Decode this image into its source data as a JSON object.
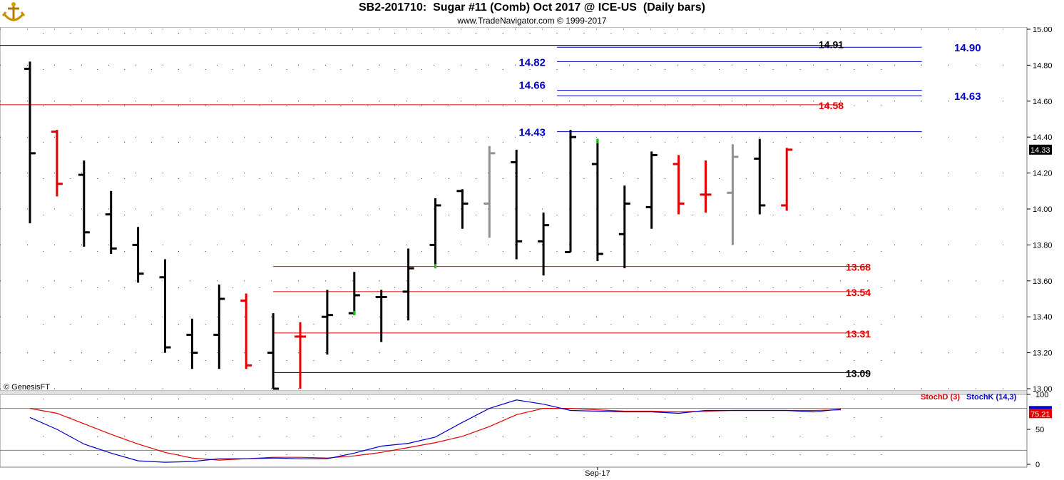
{
  "header": {
    "title": "SB2-201710:  Sugar #11 (Comb) Oct 2017 @ ICE-US  (Daily bars)",
    "subtitle": "www.TradeNavigator.com © 1999-2017",
    "watermark": "© GenesisFT"
  },
  "colors": {
    "up": "#000000",
    "down": "#e00000",
    "neutral": "#909090",
    "support": "#e00000",
    "resistance": "#0000cc",
    "stochD": "#e00000",
    "stochK": "#0000cc",
    "marker": "#00cc00"
  },
  "chart_data": [
    {
      "type": "ohlc",
      "ylim": [
        13.0,
        15.0
      ],
      "yticks": [
        "15.00",
        "14.80",
        "14.60",
        "14.40",
        "14.20",
        "14.00",
        "13.80",
        "13.60",
        "13.40",
        "13.20",
        "13.00"
      ],
      "grid": true,
      "last_price": "14.33",
      "bars": [
        {
          "o": 14.78,
          "h": 14.82,
          "l": 13.92,
          "c": 14.31,
          "color": "up"
        },
        {
          "o": 14.43,
          "h": 14.44,
          "l": 14.07,
          "c": 14.14,
          "color": "down"
        },
        {
          "o": 14.19,
          "h": 14.27,
          "l": 13.79,
          "c": 13.87,
          "color": "up"
        },
        {
          "o": 13.97,
          "h": 14.1,
          "l": 13.75,
          "c": 13.78,
          "color": "up"
        },
        {
          "o": 13.8,
          "h": 13.9,
          "l": 13.59,
          "c": 13.64,
          "color": "up"
        },
        {
          "o": 13.62,
          "h": 13.72,
          "l": 13.2,
          "c": 13.23,
          "color": "up"
        },
        {
          "o": 13.3,
          "h": 13.39,
          "l": 13.11,
          "c": 13.2,
          "color": "up"
        },
        {
          "o": 13.3,
          "h": 13.58,
          "l": 13.11,
          "c": 13.5,
          "color": "up"
        },
        {
          "o": 13.49,
          "h": 13.53,
          "l": 13.11,
          "c": 13.13,
          "color": "down"
        },
        {
          "o": 13.2,
          "h": 13.42,
          "l": 13.0,
          "c": 13.0,
          "color": "up"
        },
        {
          "o": 13.29,
          "h": 13.37,
          "l": 13.0,
          "c": 13.29,
          "color": "down"
        },
        {
          "o": 13.4,
          "h": 13.55,
          "l": 13.19,
          "c": 13.41,
          "color": "up"
        },
        {
          "o": 13.42,
          "h": 13.65,
          "l": 13.41,
          "c": 13.52,
          "color": "up",
          "mark": "low"
        },
        {
          "o": 13.51,
          "h": 13.55,
          "l": 13.26,
          "c": 13.51,
          "color": "up"
        },
        {
          "o": 13.54,
          "h": 13.78,
          "l": 13.38,
          "c": 13.67,
          "color": "up"
        },
        {
          "o": 13.8,
          "h": 14.06,
          "l": 13.67,
          "c": 14.02,
          "color": "up",
          "mark": "low"
        },
        {
          "o": 14.1,
          "h": 14.11,
          "l": 13.89,
          "c": 14.03,
          "color": "up"
        },
        {
          "o": 14.03,
          "h": 14.35,
          "l": 13.84,
          "c": 14.31,
          "color": "neutral"
        },
        {
          "o": 14.26,
          "h": 14.33,
          "l": 13.72,
          "c": 13.82,
          "color": "up"
        },
        {
          "o": 13.82,
          "h": 13.98,
          "l": 13.63,
          "c": 13.91,
          "color": "up"
        },
        {
          "o": 13.76,
          "h": 14.44,
          "l": 13.76,
          "c": 14.4,
          "color": "up"
        },
        {
          "o": 14.25,
          "h": 14.39,
          "l": 13.71,
          "c": 13.75,
          "color": "up",
          "mark": "high"
        },
        {
          "o": 13.86,
          "h": 14.13,
          "l": 13.67,
          "c": 14.03,
          "color": "up"
        },
        {
          "o": 14.01,
          "h": 14.32,
          "l": 13.89,
          "c": 14.3,
          "color": "up"
        },
        {
          "o": 14.25,
          "h": 14.3,
          "l": 13.97,
          "c": 14.03,
          "color": "down"
        },
        {
          "o": 14.08,
          "h": 14.27,
          "l": 13.98,
          "c": 14.08,
          "color": "down"
        },
        {
          "o": 14.09,
          "h": 14.36,
          "l": 13.8,
          "c": 14.29,
          "color": "neutral"
        },
        {
          "o": 14.28,
          "h": 14.39,
          "l": 13.97,
          "c": 14.02,
          "color": "up"
        },
        {
          "o": 14.02,
          "h": 14.34,
          "l": 13.99,
          "c": 14.33,
          "color": "down"
        }
      ],
      "levels": [
        {
          "value": 14.91,
          "label": "14.91",
          "color": "up",
          "start": 0,
          "end": 30
        },
        {
          "value": 14.9,
          "label": "14.90",
          "color": "resistance",
          "start": 19.5,
          "end": 33
        },
        {
          "value": 14.82,
          "label": "14.82",
          "color": "resistance",
          "start": 19.5,
          "end": 33
        },
        {
          "value": 14.66,
          "label": "14.66",
          "color": "resistance",
          "start": 19.5,
          "end": 33
        },
        {
          "value": 14.63,
          "label": "14.63",
          "color": "resistance",
          "start": 19.5,
          "end": 33
        },
        {
          "value": 14.58,
          "label": "14.58",
          "color": "support",
          "start": 0,
          "end": 30
        },
        {
          "value": 14.43,
          "label": "14.43",
          "color": "resistance",
          "start": 19.5,
          "end": 33
        },
        {
          "value": 13.68,
          "label": "13.68",
          "color": "support",
          "start": 9,
          "end": 31
        },
        {
          "value": 13.54,
          "label": "13.54",
          "color": "support",
          "start": 9,
          "end": 31
        },
        {
          "value": 13.31,
          "label": "13.31",
          "color": "support",
          "start": 9,
          "end": 31
        },
        {
          "value": 13.09,
          "label": "13.09",
          "color": "up",
          "start": 9,
          "end": 31
        }
      ],
      "xlabel": "Sep-17"
    },
    {
      "type": "line",
      "ylim": [
        0,
        100
      ],
      "yticks": [
        "100",
        "50",
        "0"
      ],
      "bands": [
        80,
        20
      ],
      "last_value": "75.21",
      "series": [
        {
          "name": "StochD (3)",
          "color": "stochD",
          "values": [
            80,
            73,
            58,
            43,
            29,
            17,
            9,
            6,
            8,
            10,
            10,
            9,
            12,
            17,
            24,
            31,
            40,
            54,
            71,
            80,
            80,
            78,
            76,
            76,
            75,
            76,
            77,
            77,
            77,
            77,
            78
          ]
        },
        {
          "name": "StochK (14,3)",
          "color": "stochK",
          "values": [
            67,
            50,
            29,
            16,
            5,
            3,
            4,
            8,
            8,
            9,
            8,
            8,
            16,
            26,
            30,
            39,
            60,
            80,
            92,
            86,
            77,
            76,
            75,
            75,
            73,
            77,
            77,
            77,
            77,
            75,
            79
          ]
        }
      ]
    }
  ]
}
